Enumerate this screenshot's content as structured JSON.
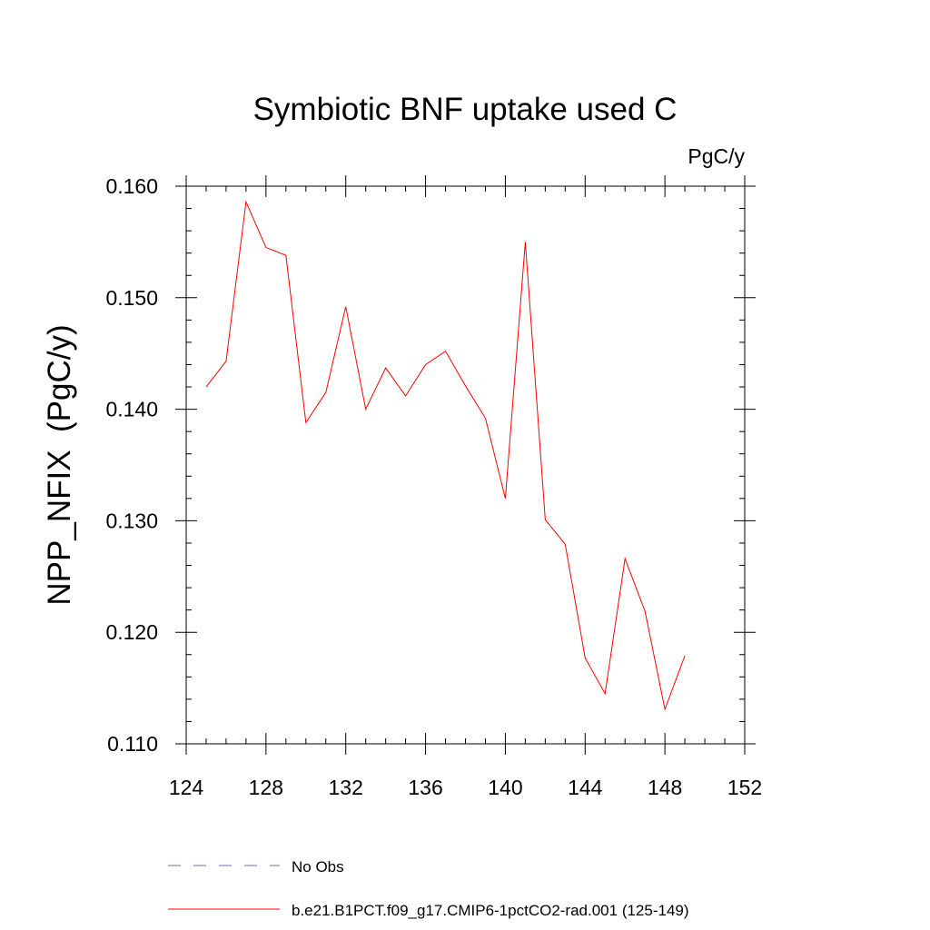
{
  "chart_data": {
    "type": "line",
    "title": "Symbiotic BNF uptake used C",
    "units_label": "PgC/y",
    "ylabel": "NPP_NFIX  (PgC/y)",
    "xlabel": "",
    "xlim": [
      124,
      152
    ],
    "ylim": [
      0.11,
      0.16
    ],
    "x_ticks": [
      124,
      128,
      132,
      136,
      140,
      144,
      148,
      152
    ],
    "x_tick_labels": [
      "124",
      "128",
      "132",
      "136",
      "140",
      "144",
      "148",
      "152"
    ],
    "y_ticks": [
      0.11,
      0.12,
      0.13,
      0.14,
      0.15,
      0.16
    ],
    "y_tick_labels": [
      "0.110",
      "0.120",
      "0.130",
      "0.140",
      "0.150",
      "0.160"
    ],
    "grid": false,
    "series": [
      {
        "name": "b.e21.B1PCT.f09_g17.CMIP6-1pctCO2-rad.001 (125-149)",
        "color": "#ff0000",
        "style": "solid",
        "x": [
          125,
          126,
          127,
          128,
          129,
          130,
          131,
          132,
          133,
          134,
          135,
          136,
          137,
          138,
          139,
          140,
          141,
          142,
          143,
          144,
          145,
          146,
          147,
          148,
          149
        ],
        "y": [
          0.142,
          0.1443,
          0.1586,
          0.1545,
          0.1538,
          0.1388,
          0.1415,
          0.1492,
          0.14,
          0.1437,
          0.1412,
          0.144,
          0.1452,
          0.1421,
          0.1392,
          0.132,
          0.155,
          0.1301,
          0.1279,
          0.1177,
          0.1145,
          0.1266,
          0.1219,
          0.1131,
          0.1179
        ]
      }
    ],
    "legend": {
      "placement": "bottom",
      "entries": [
        {
          "label": "No Obs",
          "color": "#6e6eb4",
          "style": "dashed"
        },
        {
          "label": "b.e21.B1PCT.f09_g17.CMIP6-1pctCO2-rad.001 (125-149)",
          "color": "#ff0000",
          "style": "solid"
        }
      ]
    }
  }
}
